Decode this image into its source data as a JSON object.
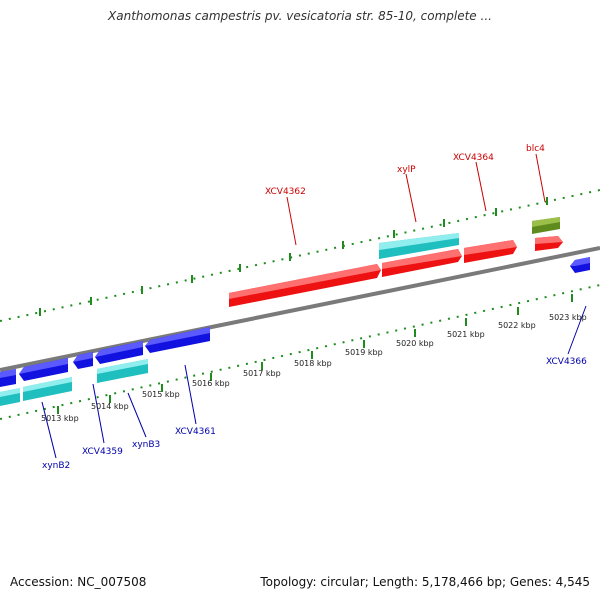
{
  "title": "Xanthomonas campestris pv. vesicatoria str. 85-10, complete ...",
  "accession": "Accession: NC_007508",
  "summary": "Topology: circular; Length: 5,178,466 bp; Genes: 4,545",
  "colors": {
    "forward_gene": "#ff0000",
    "forward_gene_top": "#ff6a6a",
    "reverse_gene": "#1414e6",
    "reverse_gene_top": "#5a5aff",
    "cyan_gene": "#20c8c8",
    "cyan_gene_top": "#8ff0f0",
    "olive_gene": "#6b8e23",
    "olive_gene_top": "#9bbf44",
    "backbone": "#777777",
    "tick_marks": "#1e8c1e",
    "forward_label": "#cc0000",
    "reverse_label": "#0000aa"
  },
  "kbp_ticks": [
    "5013 kbp",
    "5014 kbp",
    "5015 kbp",
    "5016 kbp",
    "5017 kbp",
    "5018 kbp",
    "5019 kbp",
    "5020 kbp",
    "5021 kbp",
    "5022 kbp",
    "5023 kbp"
  ],
  "forward_labels": [
    "XCV4362",
    "xylP",
    "XCV4364",
    "blc4"
  ],
  "reverse_labels": [
    "xynB2",
    "XCV4359",
    "xynB3",
    "XCV4361",
    "XCV4366"
  ]
}
